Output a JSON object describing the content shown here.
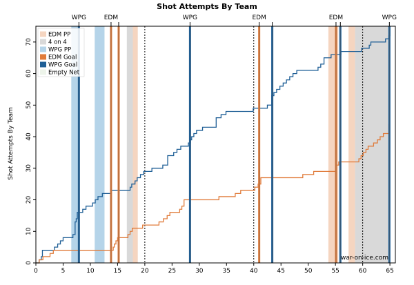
{
  "chart_data": {
    "type": "line",
    "title": "Shot Attempts By Team",
    "xlabel": "",
    "ylabel": "Shot Attempts By Team",
    "xlim": [
      0,
      66
    ],
    "ylim": [
      0,
      75
    ],
    "xticks": [
      0,
      5,
      10,
      15,
      20,
      25,
      30,
      35,
      40,
      45,
      50,
      55,
      60,
      65
    ],
    "yticks": [
      0,
      10,
      20,
      30,
      40,
      50,
      60,
      70
    ],
    "period_lines": [
      20,
      40,
      60
    ],
    "credit": "war-on-ice.com",
    "legend": [
      {
        "label": "EDM PP",
        "kind": "band",
        "color": "#f5d5c0"
      },
      {
        "label": "4 on 4",
        "kind": "band",
        "color": "#d9d9d9"
      },
      {
        "label": "WPG PP",
        "kind": "band",
        "color": "#b5d4e9"
      },
      {
        "label": "EDM Goal",
        "kind": "band",
        "color": "#e07b3a"
      },
      {
        "label": "WPG Goal",
        "kind": "band",
        "color": "#1f5f96"
      },
      {
        "label": "Empty Net",
        "kind": "band",
        "color": "#edf4ea"
      }
    ],
    "shaded_regions": [
      {
        "type": "WPG PP",
        "start": 6.5,
        "end": 7.9,
        "color": "#b5d4e9"
      },
      {
        "type": "WPG PP",
        "start": 10.8,
        "end": 12.6,
        "color": "#b5d4e9"
      },
      {
        "type": "4 on 4",
        "start": 16.7,
        "end": 18.7,
        "color": "#d9d9d9"
      },
      {
        "type": "EDM PP",
        "start": 17.8,
        "end": 18.7,
        "color": "#f5d5c0"
      },
      {
        "type": "EDM PP",
        "start": 53.7,
        "end": 55.5,
        "color": "#f5d5c0"
      },
      {
        "type": "EDM PP",
        "start": 57.4,
        "end": 58.6,
        "color": "#f5d5c0"
      },
      {
        "type": "4 on 4",
        "start": 58.6,
        "end": 64.9,
        "color": "#d9d9d9"
      }
    ],
    "goals": [
      {
        "team": "WPG",
        "time": 7.9,
        "color": "#1f5f96",
        "label": "WPG"
      },
      {
        "team": "EDM",
        "time": 13.8,
        "color": "#e07b3a",
        "label": "EDM"
      },
      {
        "team": "EDM",
        "time": 15.2,
        "color": "#e07b3a",
        "label": ""
      },
      {
        "team": "WPG",
        "time": 28.3,
        "color": "#1f5f96",
        "label": "WPG"
      },
      {
        "team": "EDM",
        "time": 41.0,
        "color": "#e07b3a",
        "label": "EDM"
      },
      {
        "team": "WPG",
        "time": 43.4,
        "color": "#1f5f96",
        "label": ""
      },
      {
        "team": "EDM",
        "time": 55.1,
        "color": "#e07b3a",
        "label": "EDM"
      },
      {
        "team": "WPG",
        "time": 55.9,
        "color": "#1f5f96",
        "label": ""
      },
      {
        "team": "WPG",
        "time": 64.9,
        "color": "#1f5f96",
        "label": "WPG"
      }
    ],
    "series": [
      {
        "name": "WPG",
        "color": "#1f5f96",
        "x": [
          0,
          0.6,
          1.0,
          1.2,
          2.6,
          3.4,
          4.0,
          4.5,
          5.0,
          6.4,
          6.8,
          7.2,
          7.4,
          7.6,
          8.0,
          8.6,
          9.2,
          9.8,
          10.4,
          10.9,
          11.4,
          12.2,
          12.6,
          13.8,
          15.0,
          17.3,
          17.6,
          18.2,
          18.6,
          19.2,
          19.8,
          20.3,
          21.3,
          22.5,
          23.3,
          24.2,
          25.3,
          25.9,
          26.6,
          27.3,
          28.0,
          28.4,
          28.6,
          29.0,
          29.3,
          29.5,
          30.0,
          30.6,
          31.4,
          33.1,
          34.0,
          34.9,
          35.7,
          36.5,
          39.9,
          40.1,
          42.5,
          43.3,
          43.7,
          44.2,
          44.8,
          45.4,
          46.0,
          46.6,
          47.2,
          47.9,
          48.4,
          51.8,
          52.3,
          52.9,
          54.2,
          55.4,
          56.0,
          56.6,
          59.8,
          61.2,
          61.5,
          62.6,
          64.2,
          64.8,
          65.0
        ],
        "y": [
          0,
          1,
          2,
          4,
          4,
          5,
          6,
          7,
          8,
          8,
          9,
          13,
          14,
          16,
          16,
          17,
          18,
          18,
          19,
          20,
          21,
          22,
          22,
          23,
          23,
          24,
          25,
          26,
          27,
          28,
          29,
          29,
          30,
          30,
          31,
          34,
          35,
          36,
          37,
          37,
          38,
          39,
          40,
          41,
          41,
          42,
          42,
          43,
          43,
          46,
          47,
          48,
          48,
          48,
          49,
          49,
          50,
          53,
          54,
          55,
          56,
          57,
          58,
          59,
          60,
          61,
          61,
          62,
          63,
          65,
          66,
          66,
          67,
          67,
          68,
          69,
          70,
          70,
          71,
          72,
          75
        ]
      },
      {
        "name": "EDM",
        "color": "#e07b3a",
        "x": [
          0,
          0.6,
          1.0,
          1.3,
          2.0,
          2.6,
          3.2,
          13.8,
          14.2,
          14.4,
          14.7,
          15.0,
          15.3,
          16.4,
          16.9,
          17.3,
          17.7,
          18.2,
          18.9,
          19.6,
          20.2,
          21.3,
          22.6,
          23.4,
          24.1,
          24.6,
          25.4,
          26.4,
          26.8,
          27.2,
          29.3,
          33.6,
          36.0,
          36.6,
          37.6,
          40.2,
          40.8,
          41.3,
          49.0,
          51.0,
          55.1,
          55.6,
          59.3,
          59.7,
          60.1,
          60.6,
          61.0,
          61.4,
          62.0,
          62.7,
          63.2,
          63.8,
          64.4,
          64.8
        ],
        "y": [
          0,
          1,
          1,
          2,
          2,
          3,
          4,
          4,
          5,
          6,
          7,
          8,
          8,
          8,
          9,
          10,
          11,
          11,
          11,
          12,
          12,
          12,
          13,
          14,
          15,
          16,
          16,
          17,
          18,
          20,
          20,
          21,
          21,
          22,
          23,
          24,
          25,
          27,
          28,
          29,
          31,
          32,
          33,
          34,
          35,
          36,
          37,
          37,
          38,
          39,
          40,
          41,
          41,
          44
        ]
      }
    ]
  }
}
